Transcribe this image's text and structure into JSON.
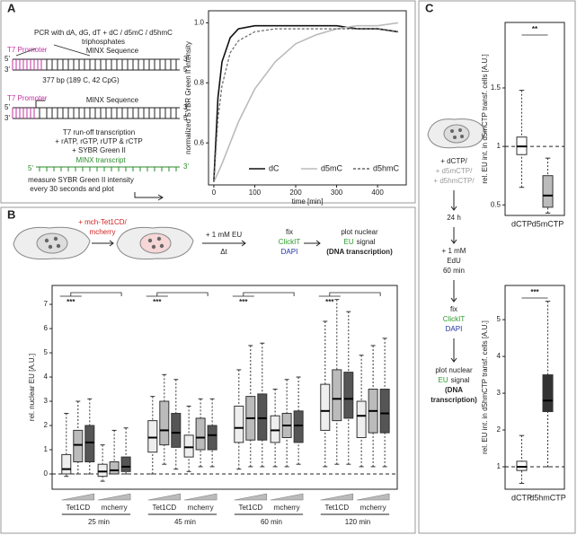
{
  "panel_labels": [
    "A",
    "B",
    "C"
  ],
  "diagram_a": {
    "pcr": "PCR with dA, dG, dT + dC / d5mC / d5hmC",
    "triphosphates": "triphosphates",
    "promoter": "T7 Promoter",
    "minx": "MINX Sequence",
    "end5": "5'",
    "end3": "3'",
    "length": "377 bp (189 C, 42 CpG)",
    "transcription": "T7 run-off transcription",
    "ntps": "+ rATP, rGTP, rUTP & rCTP",
    "sybr": "+ SYBR Green II",
    "transcript": "MINX transcript",
    "measure": "measure SYBR Green II intensity",
    "every": "every 30 seconds and plot"
  },
  "diagram_b": {
    "transfect_1": "+ mch-Tet1CD/",
    "transfect_2": "mcherry",
    "eu": "+ 1 mM EU",
    "dt": "Δt",
    "fix": "fix",
    "clickit": "ClickIT",
    "dapi": "DAPI",
    "plot_1": "plot nuclear",
    "plot_2a": "EU",
    "plot_2b": "signal",
    "plot_3": "(DNA transcription)"
  },
  "diagram_c": {
    "dctp": "+ dCTP/",
    "d5mctp": "+ d5mCTP/",
    "d5hmctp": "+ d5hmCTP/",
    "time": "24 h",
    "edu_1": "+ 1 mM",
    "edu_2": "EdU",
    "edu_3": "60 min",
    "fix": "fix",
    "clickit": "ClickIT",
    "dapi": "DAPI",
    "plot_1": "plot nuclear",
    "plot_2a": "EU",
    "plot_2b": "signal",
    "plot_3": "(DNA",
    "plot_4": "transcription)"
  },
  "chart_data": [
    {
      "type": "line",
      "y_label": "normalized SYBR Green II intensity",
      "x_label": "time [min]",
      "x": [
        0,
        10,
        20,
        40,
        60,
        100,
        150,
        200,
        250,
        300,
        350,
        400,
        450
      ],
      "xlim": [
        -13,
        470
      ],
      "xticks": [
        0,
        100,
        200,
        300,
        400
      ],
      "ylim": [
        0.46,
        1.04
      ],
      "yticks": [
        0.6,
        0.8,
        {
          "value": 1,
          "label": "1.0"
        }
      ],
      "legend": "lower right",
      "series": [
        {
          "name": "dC",
          "color": "#111111",
          "dash": "solid",
          "values": [
            0.47,
            0.75,
            0.87,
            0.95,
            0.98,
            0.99,
            0.99,
            0.99,
            0.99,
            0.99,
            0.98,
            0.98,
            0.97
          ]
        },
        {
          "name": "d5mC",
          "color": "#bbbbbb",
          "dash": "solid",
          "values": [
            0.47,
            0.5,
            0.53,
            0.6,
            0.67,
            0.78,
            0.87,
            0.93,
            0.96,
            0.98,
            0.99,
            0.99,
            1.0
          ]
        },
        {
          "name": "d5hmC",
          "color": "#666666",
          "dash": "dashed",
          "values": [
            0.47,
            0.68,
            0.79,
            0.9,
            0.94,
            0.97,
            0.98,
            0.98,
            0.98,
            0.98,
            0.98,
            0.98,
            0.97
          ]
        }
      ]
    },
    {
      "type": "box",
      "y_label": "rel. nuclear EU [A.U.]",
      "categories": [
        "Tet1CD",
        "mcherry",
        "Tet1CD",
        "mcherry",
        "Tet1CD",
        "mcherry",
        "Tet1CD",
        "mcherry"
      ],
      "group_labels": [
        "25 min",
        "45 min",
        "60 min",
        "120 min"
      ],
      "ylim": [
        -0.63,
        7.78
      ],
      "yticks": [
        0,
        1,
        2,
        3,
        4,
        5,
        6,
        7
      ],
      "hline": 0,
      "annotations": [
        "***",
        "***",
        "***",
        "***"
      ],
      "series": [
        {
          "color": "#eeeeee",
          "whislo": [
            -0.1,
            -0.3,
            0,
            0.1,
            0.2,
            0.3,
            0.3,
            0.3
          ],
          "q1": [
            0,
            -0.1,
            0.9,
            0.7,
            1.3,
            1.3,
            1.8,
            1.5
          ],
          "med": [
            0.2,
            0.1,
            1.5,
            1.1,
            1.9,
            1.8,
            2.6,
            2.4
          ],
          "q3": [
            0.8,
            0.4,
            2.2,
            1.6,
            2.8,
            2.4,
            3.7,
            3.0
          ],
          "whishi": [
            2.5,
            1.2,
            3.2,
            2.8,
            4.3,
            3.5,
            6.3,
            4.9
          ]
        },
        {
          "color": "#bbbbbb",
          "whislo": [
            0,
            0,
            0.4,
            0.3,
            0.3,
            0.3,
            0.4,
            0.3
          ],
          "q1": [
            0.5,
            0,
            1.2,
            1.0,
            1.4,
            1.5,
            2.2,
            1.7
          ],
          "med": [
            1.2,
            0.15,
            1.8,
            1.5,
            2.3,
            2.0,
            3.1,
            2.6
          ],
          "q3": [
            1.8,
            0.5,
            3.0,
            2.3,
            3.2,
            2.5,
            4.3,
            3.5
          ],
          "whishi": [
            3.0,
            1.8,
            4.1,
            3.1,
            5.3,
            3.9,
            7.2,
            5.3
          ]
        },
        {
          "color": "#555555",
          "whislo": [
            0,
            0,
            0.2,
            0.3,
            0.3,
            0.4,
            0.4,
            0.3
          ],
          "q1": [
            0.5,
            0.1,
            1.1,
            1.0,
            1.4,
            1.3,
            2.3,
            1.7
          ],
          "med": [
            1.3,
            0.3,
            1.7,
            1.6,
            2.3,
            2.0,
            3.1,
            2.5
          ],
          "q3": [
            2.0,
            0.7,
            2.5,
            2.0,
            3.3,
            2.6,
            4.2,
            3.5
          ],
          "whishi": [
            3.1,
            1.9,
            3.9,
            3.1,
            5.4,
            4.0,
            6.7,
            5.6
          ]
        }
      ]
    },
    {
      "type": "box",
      "y_label": "rel. EU int. in d5mCTP transf. cells [A.U.]",
      "categories": [
        "dCTP",
        "d5mCTP"
      ],
      "ylim": [
        0.41,
        2.06
      ],
      "yticks": [
        0.5,
        1,
        1.5
      ],
      "hline": 1,
      "annotations": [
        "**"
      ],
      "series": [
        {
          "colors": [
            "#ffffff",
            "#bbbbbb"
          ],
          "whislo": [
            0.65,
            0.43
          ],
          "q1": [
            0.93,
            0.48
          ],
          "med": [
            1.0,
            0.58
          ],
          "q3": [
            1.08,
            0.75
          ],
          "whishi": [
            1.48,
            0.9
          ]
        }
      ]
    },
    {
      "type": "box",
      "y_label": "rel. EU int. in d5hmCTP transf. cells [A.U.]",
      "categories": [
        "dCTP",
        "d5hmCTP"
      ],
      "ylim": [
        0.39,
        5.93
      ],
      "yticks": [
        1,
        2,
        3,
        4,
        5
      ],
      "hline": 1,
      "annotations": [
        "***"
      ],
      "series": [
        {
          "colors": [
            "#ffffff",
            "#333333"
          ],
          "whislo": [
            0.55,
            1.0
          ],
          "q1": [
            0.9,
            2.5
          ],
          "med": [
            1.0,
            2.8
          ],
          "q3": [
            1.15,
            3.5
          ],
          "whishi": [
            1.85,
            5.5
          ]
        }
      ]
    }
  ]
}
